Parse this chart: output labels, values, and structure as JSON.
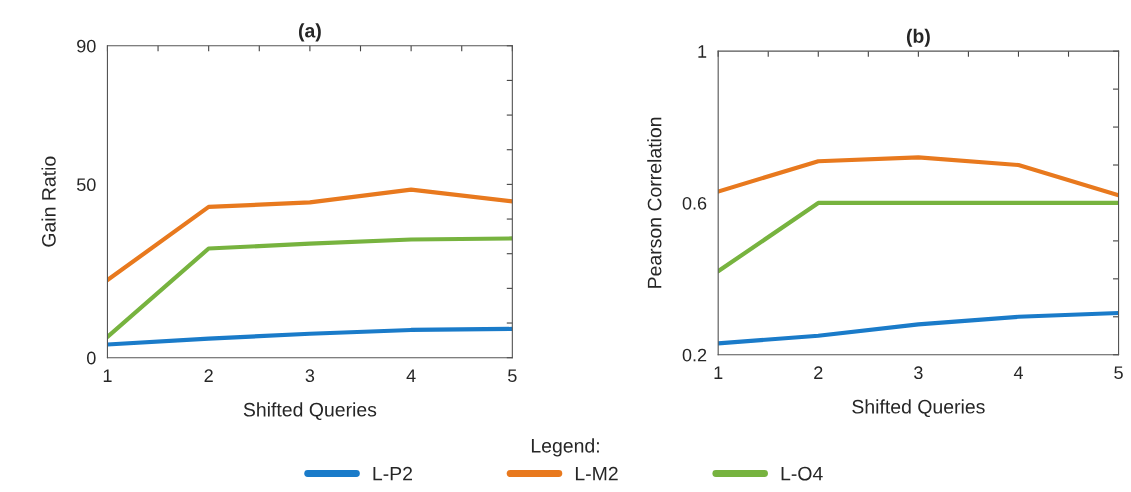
{
  "chart_data": [
    {
      "type": "line",
      "title": "(a)",
      "xlabel": "Shifted Queries",
      "ylabel": "Gain Ratio",
      "x": [
        1,
        2,
        3,
        4,
        5
      ],
      "xlim": [
        1,
        5
      ],
      "xticks": [
        1,
        {
          "value": 1.5,
          "label": null
        },
        2,
        {
          "value": 2.5,
          "label": null
        },
        3,
        {
          "value": 3.5,
          "label": null
        },
        4,
        {
          "value": 4.5,
          "label": null
        },
        5
      ],
      "ylim": [
        0,
        90
      ],
      "yticks": [
        0,
        {
          "value": 10,
          "label": null
        },
        {
          "value": 20,
          "label": null
        },
        {
          "value": 30,
          "label": null
        },
        {
          "value": 40,
          "label": null
        },
        50,
        {
          "value": 60,
          "label": null
        },
        {
          "value": 70,
          "label": null
        },
        {
          "value": 80,
          "label": null
        },
        90
      ],
      "legend": "bottom",
      "legend_title": "Legend:",
      "series": [
        {
          "name": "L-P2",
          "color": "#1a7bc9",
          "values": [
            3.8,
            5.5,
            6.9,
            8.0,
            8.3
          ]
        },
        {
          "name": "L-M2",
          "color": "#e8791e",
          "values": [
            22.4,
            43.5,
            44.8,
            48.5,
            45.1
          ]
        },
        {
          "name": "L-O4",
          "color": "#77b33f",
          "values": [
            6.0,
            31.5,
            32.9,
            34.1,
            34.4
          ]
        }
      ]
    },
    {
      "type": "line",
      "title": "(b)",
      "xlabel": "Shifted Queries",
      "ylabel": "Pearson Correlation",
      "x": [
        1,
        2,
        3,
        4,
        5
      ],
      "xlim": [
        1,
        5
      ],
      "xticks": [
        1,
        {
          "value": 1.5,
          "label": null
        },
        2,
        {
          "value": 2.5,
          "label": null
        },
        3,
        {
          "value": 3.5,
          "label": null
        },
        4,
        {
          "value": 4.5,
          "label": null
        },
        5
      ],
      "ylim": [
        0.2,
        1
      ],
      "yticks": [
        0.2,
        {
          "value": 0.3,
          "label": null
        },
        {
          "value": 0.4,
          "label": null
        },
        {
          "value": 0.5,
          "label": null
        },
        0.6,
        {
          "value": 0.7,
          "label": null
        },
        {
          "value": 0.8,
          "label": null
        },
        {
          "value": 0.9,
          "label": null
        },
        1
      ],
      "series": [
        {
          "color": "#1a7bc9",
          "values": [
            0.23,
            0.25,
            0.28,
            0.3,
            0.31
          ]
        },
        {
          "color": "#e8791e",
          "values": [
            0.63,
            0.71,
            0.72,
            0.7,
            0.62
          ]
        },
        {
          "color": "#77b33f",
          "values": [
            0.42,
            0.6,
            0.6,
            0.6,
            0.6
          ]
        }
      ]
    }
  ]
}
